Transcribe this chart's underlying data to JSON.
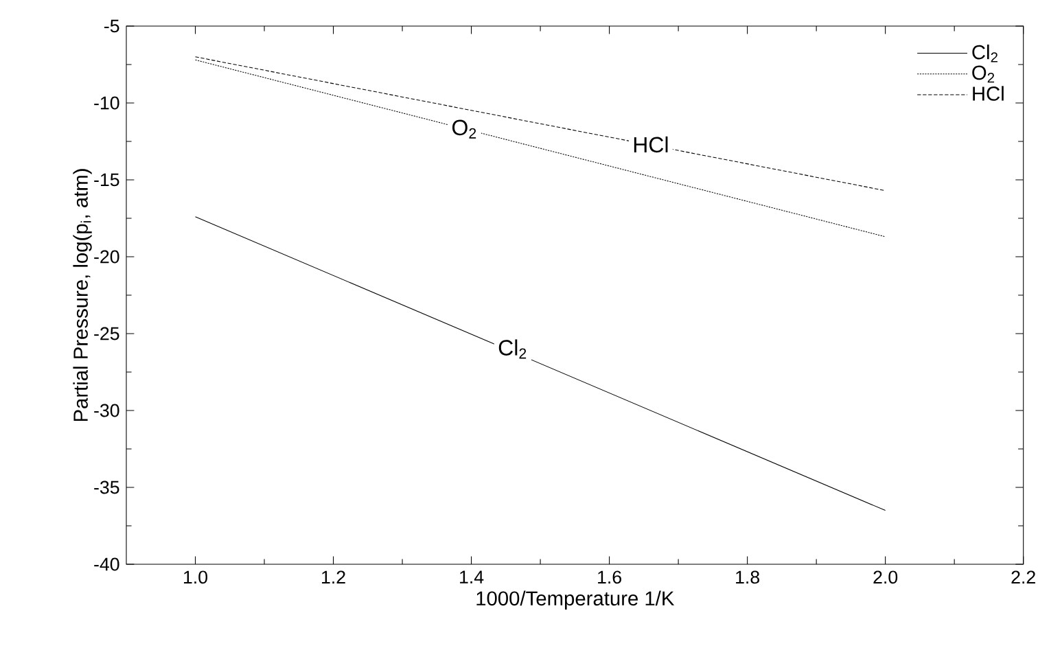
{
  "chart_data": {
    "type": "line",
    "xlabel": "1000/Temperature  1/K",
    "ylabel": "Partial Pressure, log(p$_{i}$, atm)",
    "xlim": [
      0.9,
      2.2
    ],
    "ylim": [
      -40,
      -5
    ],
    "xticks": [
      {
        "value": 1.0,
        "label": "1.0"
      },
      {
        "value": 1.2,
        "label": "1.2"
      },
      {
        "value": 1.4,
        "label": "1.4"
      },
      {
        "value": 1.6,
        "label": "1.6"
      },
      {
        "value": 1.8,
        "label": "1.8"
      },
      {
        "value": 2.0,
        "label": "2.0"
      },
      {
        "value": 2.2,
        "label": "2.2"
      }
    ],
    "yticks": [
      -40,
      -35,
      -30,
      -25,
      -20,
      -15,
      -10,
      -5
    ],
    "x": [
      1.0,
      2.0
    ],
    "series": [
      {
        "name": "Cl$_{2}$",
        "color": "#000000",
        "line_style": "solid",
        "values": [
          -17.4,
          -36.5
        ]
      },
      {
        "name": "O$_{2}$",
        "color": "#000000",
        "line_style": "dotted",
        "values": [
          -7.2,
          -18.7
        ]
      },
      {
        "name": "HCl",
        "color": "#000000",
        "line_style": "dashed",
        "values": [
          -7.0,
          -15.7
        ]
      }
    ],
    "annotations": [
      {
        "text": "O$_{2}$",
        "x": 1.39,
        "y": -11.7
      },
      {
        "text": "HCl",
        "x": 1.66,
        "y": -12.7
      },
      {
        "text": "Cl$_{2}$",
        "x": 1.46,
        "y": -26.0
      }
    ],
    "grid": false,
    "legend": "top right",
    "marker": "none"
  }
}
